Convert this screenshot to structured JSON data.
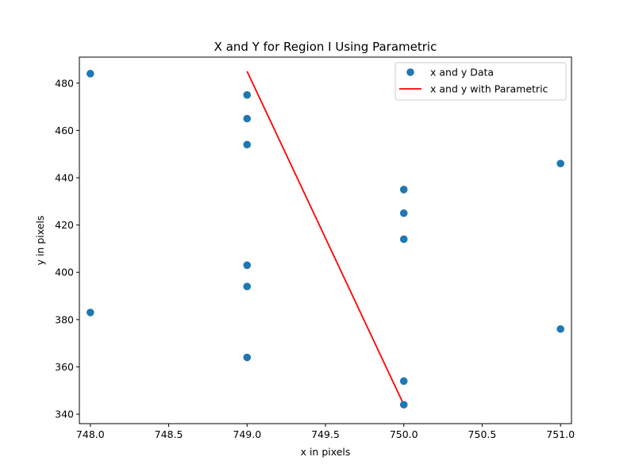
{
  "chart_data": {
    "type": "scatter",
    "title": "X and Y for Region I Using Parametric",
    "xlabel": "x in pixels",
    "ylabel": "y in pixels",
    "xlim": [
      747.93,
      751.07
    ],
    "ylim": [
      336,
      491
    ],
    "xticks": [
      748.0,
      748.5,
      749.0,
      749.5,
      750.0,
      750.5,
      751.0
    ],
    "xtick_labels": [
      "748.0",
      "748.5",
      "749.0",
      "749.5",
      "750.0",
      "750.5",
      "751.0"
    ],
    "yticks": [
      340,
      360,
      380,
      400,
      420,
      440,
      460,
      480
    ],
    "ytick_labels": [
      "340",
      "360",
      "380",
      "400",
      "420",
      "440",
      "460",
      "480"
    ],
    "grid": false,
    "legend_position": "top-right",
    "series": [
      {
        "name": "x and y Data",
        "kind": "scatter",
        "color": "#1f77b4",
        "points": [
          [
            748,
            484
          ],
          [
            748,
            383
          ],
          [
            749,
            475
          ],
          [
            749,
            465
          ],
          [
            749,
            454
          ],
          [
            749,
            403
          ],
          [
            749,
            394
          ],
          [
            749,
            364
          ],
          [
            750,
            435
          ],
          [
            750,
            425
          ],
          [
            750,
            414
          ],
          [
            750,
            354
          ],
          [
            750,
            344
          ],
          [
            751,
            446
          ],
          [
            751,
            376
          ]
        ]
      },
      {
        "name": "x and y with Parametric",
        "kind": "line",
        "color": "#ff0000",
        "points": [
          [
            749,
            485
          ],
          [
            750,
            344
          ]
        ]
      }
    ]
  }
}
